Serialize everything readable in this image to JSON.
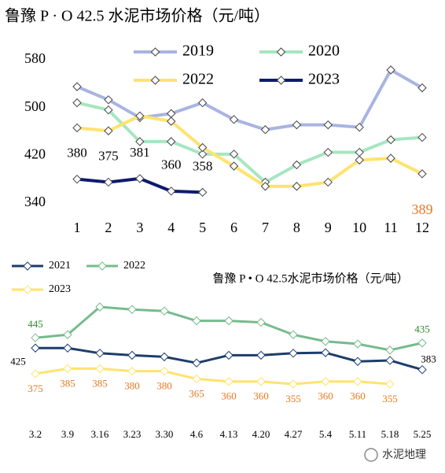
{
  "chart_data": [
    {
      "type": "line",
      "title": "鲁豫 P · O 42.5 水泥市场价格（元/吨）",
      "categories": [
        "1",
        "2",
        "3",
        "4",
        "5",
        "6",
        "7",
        "8",
        "9",
        "10",
        "11",
        "12"
      ],
      "ylim": [
        340,
        580
      ],
      "yticks": [
        340,
        420,
        500,
        580
      ],
      "grid": false,
      "series": [
        {
          "name": "2019",
          "color": "#a9b4e0",
          "values": [
            535,
            513,
            483,
            490,
            508,
            480,
            463,
            471,
            471,
            467,
            563,
            533
          ]
        },
        {
          "name": "2020",
          "color": "#a6e6c0",
          "values": [
            508,
            496,
            443,
            443,
            422,
            422,
            375,
            404,
            425,
            425,
            446,
            450
          ]
        },
        {
          "name": "2022",
          "color": "#ffe36e",
          "values": [
            466,
            461,
            486,
            477,
            433,
            402,
            368,
            368,
            375,
            412,
            415,
            389
          ],
          "value_labels": [
            null,
            null,
            null,
            null,
            null,
            null,
            null,
            null,
            null,
            null,
            null,
            "389"
          ]
        },
        {
          "name": "2023",
          "color": "#0d1b6e",
          "values": [
            380,
            375,
            381,
            360,
            358,
            null,
            null,
            null,
            null,
            null,
            null,
            null
          ],
          "value_labels": [
            "380",
            "375",
            "381",
            "360",
            "358",
            null,
            null,
            null,
            null,
            null,
            null,
            null
          ]
        }
      ]
    },
    {
      "type": "line",
      "title": "鲁豫  P • O 42.5水泥市场价格（元/吨）",
      "categories": [
        "3.2",
        "3.9",
        "3.16",
        "3.23",
        "3.30",
        "4.6",
        "4.13",
        "4.20",
        "4.27",
        "5.4",
        "5.11",
        "5.18",
        "5.25"
      ],
      "series": [
        {
          "name": "2021",
          "color": "#1d3d6b",
          "values": [
            425,
            425,
            415,
            411,
            408,
            396,
            411,
            411,
            415,
            416,
            399,
            401,
            383
          ],
          "value_labels": [
            "425",
            null,
            null,
            null,
            null,
            null,
            null,
            null,
            null,
            null,
            null,
            null,
            "383"
          ]
        },
        {
          "name": "2022",
          "color": "#76bb8c",
          "values": [
            445,
            451,
            505,
            500,
            497,
            478,
            478,
            475,
            451,
            438,
            433,
            421,
            435
          ],
          "value_labels": [
            "445",
            null,
            null,
            null,
            null,
            null,
            null,
            null,
            null,
            null,
            null,
            null,
            "435"
          ]
        },
        {
          "name": "2023",
          "color": "#ffe36e",
          "values": [
            375,
            385,
            385,
            380,
            380,
            365,
            360,
            360,
            355,
            360,
            360,
            355,
            null
          ],
          "value_labels": [
            "375",
            "385",
            "385",
            "380",
            "380",
            "365",
            "360",
            "360",
            "355",
            "360",
            "360",
            "355",
            null
          ]
        }
      ]
    }
  ],
  "watermark": "水泥地理"
}
